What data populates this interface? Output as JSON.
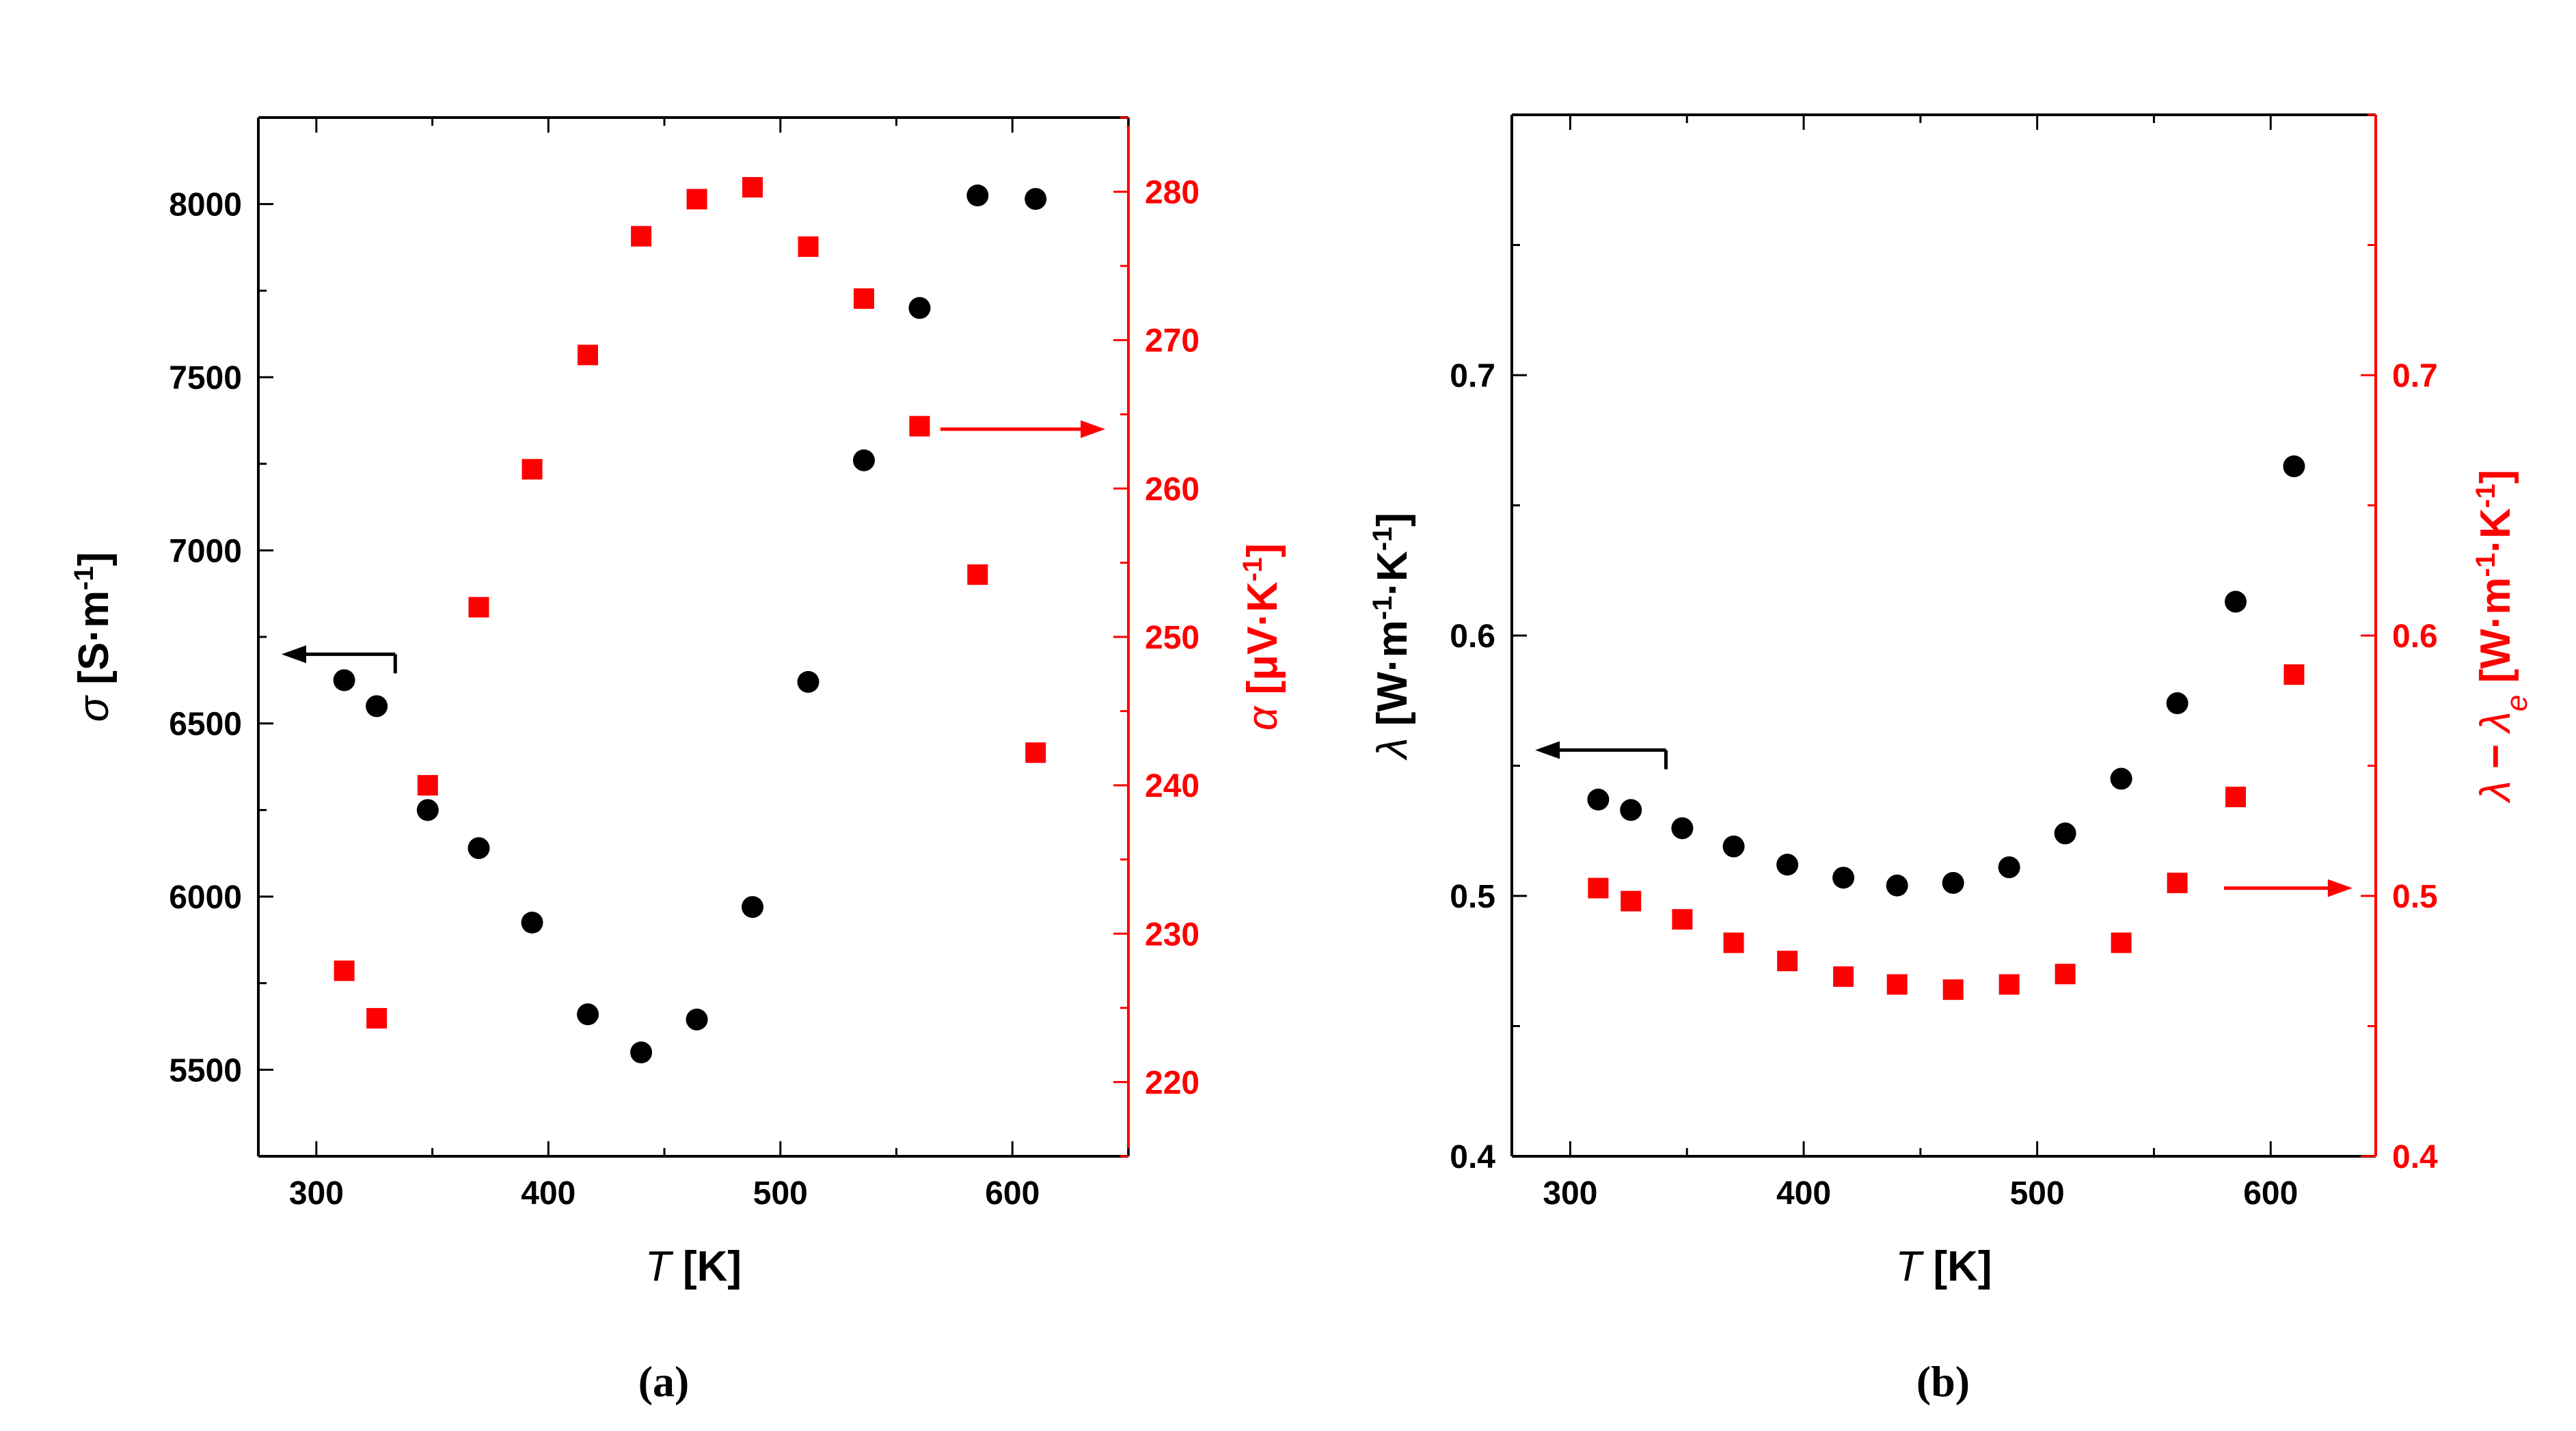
{
  "colors": {
    "left_series": "#000000",
    "right_series": "#ff0000",
    "left_axis": "#000000",
    "right_axis": "#ff0000"
  },
  "chart_data": [
    {
      "type": "scatter",
      "panel_label": "(a)",
      "xlabel": "T [K]",
      "ylabel_left": "σ [S·m⁻¹]",
      "ylabel_right": "α [μV·K⁻¹]",
      "xlim": [
        275,
        650
      ],
      "ylim_left": [
        5250,
        8250
      ],
      "ylim_right": [
        215,
        285
      ],
      "xticks": [
        300,
        400,
        500,
        600
      ],
      "yticks_left": [
        5500,
        6000,
        6500,
        7000,
        7500,
        8000
      ],
      "yticks_right": [
        220,
        230,
        240,
        250,
        260,
        270,
        280
      ],
      "series": [
        {
          "name": "σ",
          "axis": "left",
          "marker": "circle",
          "x": [
            312,
            326,
            348,
            370,
            393,
            417,
            440,
            464,
            488,
            512,
            536,
            560,
            585,
            610
          ],
          "y": [
            6625,
            6550,
            6250,
            6140,
            5925,
            5660,
            5550,
            5645,
            5970,
            6620,
            7260,
            7700,
            8025,
            8015
          ]
        },
        {
          "name": "α",
          "axis": "right",
          "marker": "square",
          "x": [
            312,
            326,
            348,
            370,
            393,
            417,
            440,
            464,
            488,
            512,
            536,
            560,
            585,
            610
          ],
          "y": [
            227.5,
            224.3,
            240.0,
            252.0,
            261.3,
            269.0,
            277.0,
            279.5,
            280.3,
            276.3,
            272.8,
            264.2,
            254.2,
            242.2
          ]
        }
      ],
      "annotations": [
        {
          "points_to": "left axis",
          "from": [
            334,
            6700
          ],
          "to": [
            285,
            6700
          ]
        },
        {
          "points_to": "right axis",
          "from": [
            569,
            264
          ],
          "to": [
            640,
            264
          ]
        }
      ]
    },
    {
      "type": "scatter",
      "panel_label": "(b)",
      "xlabel": "T [K]",
      "ylabel_left": "λ [W·m⁻¹·K⁻¹]",
      "ylabel_right": "λ − λₑ [W·m⁻¹·K⁻¹]",
      "xlim": [
        275,
        645
      ],
      "ylim_left": [
        0.4,
        0.8
      ],
      "ylim_right": [
        0.4,
        0.8
      ],
      "xticks": [
        300,
        400,
        500,
        600
      ],
      "yticks_left": [
        0.4,
        0.5,
        0.6,
        0.7
      ],
      "yticks_right": [
        0.4,
        0.5,
        0.6,
        0.7
      ],
      "series": [
        {
          "name": "λ",
          "axis": "left",
          "marker": "circle",
          "x": [
            312,
            326,
            348,
            370,
            393,
            417,
            440,
            464,
            488,
            512,
            536,
            560,
            585,
            610
          ],
          "y": [
            0.537,
            0.533,
            0.526,
            0.519,
            0.512,
            0.507,
            0.504,
            0.505,
            0.511,
            0.524,
            0.545,
            0.574,
            0.613,
            0.665
          ]
        },
        {
          "name": "λ − λₑ",
          "axis": "right",
          "marker": "square",
          "x": [
            312,
            326,
            348,
            370,
            393,
            417,
            440,
            464,
            488,
            512,
            536,
            560,
            585,
            610
          ],
          "y": [
            0.503,
            0.498,
            0.491,
            0.482,
            0.475,
            0.469,
            0.466,
            0.464,
            0.466,
            0.47,
            0.482,
            0.505,
            0.538,
            0.585
          ]
        }
      ],
      "annotations": [
        {
          "points_to": "left axis",
          "from": [
            341,
            0.556
          ],
          "to": [
            285,
            0.556
          ]
        },
        {
          "points_to": "right axis",
          "from": [
            580,
            0.503
          ],
          "to": [
            635,
            0.503
          ]
        }
      ]
    }
  ]
}
